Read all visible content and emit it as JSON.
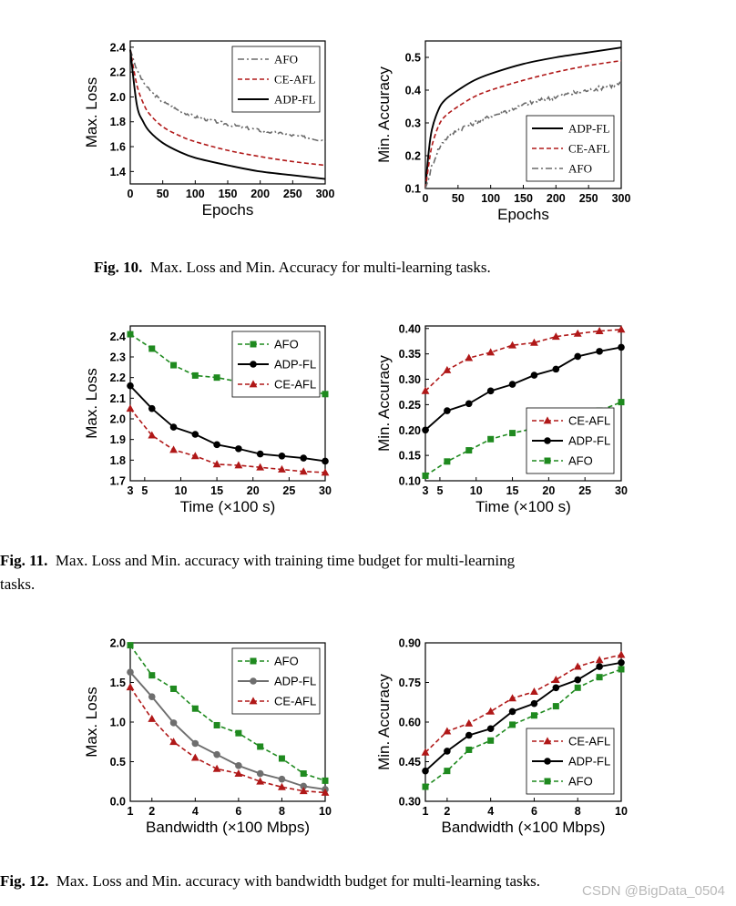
{
  "captions": {
    "fig10_label": "Fig. 10.",
    "fig10_text": "Max. Loss and Min. Accuracy for multi-learning tasks.",
    "fig11_label": "Fig. 11.",
    "fig11_text_line1": "Max. Loss and Min. accuracy with training time budget for multi-learning",
    "fig11_text_line2": "tasks.",
    "fig12_label": "Fig. 12.",
    "fig12_text": "Max. Loss and Min. accuracy with bandwidth budget for multi-learning tasks."
  },
  "watermark": "CSDN @BigData_0504",
  "colors": {
    "AFO_fig10": "#6a6a6a",
    "CE-AFL": "#b01818",
    "ADP-FL": "#000000",
    "AFO_green": "#1f8a1f",
    "ADP-FL_fig12": "#6e6e6e"
  },
  "chart_data": [
    {
      "id": "fig10a",
      "type": "line",
      "xlabel": "Epochs",
      "ylabel": "Max. Loss",
      "xlim": [
        0,
        300
      ],
      "ylim": [
        1.3,
        2.45
      ],
      "xticks": [
        0,
        50,
        100,
        150,
        200,
        250,
        300
      ],
      "yticks": [
        1.4,
        1.6,
        1.8,
        2.0,
        2.2,
        2.4
      ],
      "ytick_labels": [
        "1.4",
        "1.6",
        "1.8",
        "2.0",
        "2.2",
        "2.4"
      ],
      "legend": "top-right",
      "series": [
        {
          "name": "AFO",
          "style": "dashdot",
          "color": "#6a6a6a",
          "marker": "none",
          "noise": 0.012,
          "x": [
            0,
            10,
            20,
            30,
            50,
            75,
            100,
            150,
            200,
            250,
            300
          ],
          "y": [
            2.38,
            2.22,
            2.12,
            2.05,
            1.96,
            1.89,
            1.84,
            1.78,
            1.73,
            1.69,
            1.65
          ]
        },
        {
          "name": "CE-AFL",
          "style": "dashed",
          "color": "#b01818",
          "marker": "none",
          "noise": 0,
          "x": [
            0,
            10,
            20,
            30,
            50,
            75,
            100,
            150,
            200,
            250,
            300
          ],
          "y": [
            2.38,
            2.1,
            1.95,
            1.86,
            1.76,
            1.69,
            1.64,
            1.57,
            1.52,
            1.48,
            1.45
          ]
        },
        {
          "name": "ADP-FL",
          "style": "solid",
          "color": "#000000",
          "marker": "none",
          "noise": 0,
          "x": [
            0,
            10,
            20,
            30,
            50,
            75,
            100,
            150,
            200,
            250,
            300
          ],
          "y": [
            2.38,
            1.94,
            1.8,
            1.72,
            1.63,
            1.56,
            1.51,
            1.45,
            1.4,
            1.37,
            1.34
          ]
        }
      ]
    },
    {
      "id": "fig10b",
      "type": "line",
      "xlabel": "Epochs",
      "ylabel": "Min. Accuracy",
      "xlim": [
        0,
        300
      ],
      "ylim": [
        0.1,
        0.55
      ],
      "xticks": [
        0,
        50,
        100,
        150,
        200,
        250,
        300
      ],
      "yticks": [
        0.1,
        0.2,
        0.3,
        0.4,
        0.5
      ],
      "ytick_labels": [
        "0.1",
        "0.2",
        "0.3",
        "0.4",
        "0.5"
      ],
      "legend": "bottom-right",
      "series": [
        {
          "name": "ADP-FL",
          "style": "solid",
          "color": "#000000",
          "marker": "none",
          "noise": 0,
          "x": [
            0,
            5,
            10,
            20,
            30,
            50,
            75,
            100,
            150,
            200,
            250,
            300
          ],
          "y": [
            0.1,
            0.21,
            0.28,
            0.34,
            0.37,
            0.4,
            0.43,
            0.45,
            0.48,
            0.5,
            0.515,
            0.53
          ]
        },
        {
          "name": "CE-AFL",
          "style": "dashed",
          "color": "#b01818",
          "marker": "none",
          "noise": 0,
          "x": [
            0,
            5,
            10,
            20,
            30,
            50,
            75,
            100,
            150,
            200,
            250,
            300
          ],
          "y": [
            0.1,
            0.17,
            0.23,
            0.29,
            0.32,
            0.35,
            0.38,
            0.4,
            0.43,
            0.455,
            0.475,
            0.49
          ]
        },
        {
          "name": "AFO",
          "style": "dashdot",
          "color": "#6a6a6a",
          "marker": "none",
          "noise": 0.007,
          "x": [
            0,
            5,
            10,
            20,
            30,
            50,
            75,
            100,
            150,
            200,
            250,
            300
          ],
          "y": [
            0.1,
            0.13,
            0.17,
            0.22,
            0.25,
            0.28,
            0.3,
            0.32,
            0.355,
            0.38,
            0.4,
            0.42
          ]
        }
      ]
    },
    {
      "id": "fig11a",
      "type": "line",
      "xlabel": "Time (×100 s)",
      "ylabel": "Max. Loss",
      "xlim": [
        3,
        30
      ],
      "ylim": [
        1.7,
        2.45
      ],
      "xticks": [
        3,
        5,
        10,
        15,
        20,
        25,
        30
      ],
      "yticks": [
        1.7,
        1.8,
        1.9,
        2.0,
        2.1,
        2.2,
        2.3,
        2.4
      ],
      "ytick_labels": [
        "1.7",
        "1.8",
        "1.9",
        "2.0",
        "2.1",
        "2.2",
        "2.3",
        "2.4"
      ],
      "legend": "top-right",
      "series": [
        {
          "name": "AFO",
          "style": "dashed",
          "color": "#1f8a1f",
          "marker": "square",
          "noise": 0,
          "x": [
            3,
            6,
            9,
            12,
            15,
            18,
            21,
            24,
            27,
            30
          ],
          "y": [
            2.41,
            2.34,
            2.26,
            2.21,
            2.2,
            2.18,
            2.155,
            2.145,
            2.14,
            2.12
          ]
        },
        {
          "name": "ADP-FL",
          "style": "solid",
          "color": "#000000",
          "marker": "circle",
          "noise": 0,
          "x": [
            3,
            6,
            9,
            12,
            15,
            18,
            21,
            24,
            27,
            30
          ],
          "y": [
            2.16,
            2.05,
            1.96,
            1.925,
            1.875,
            1.855,
            1.83,
            1.82,
            1.81,
            1.795
          ]
        },
        {
          "name": "CE-AFL",
          "style": "dashed",
          "color": "#b01818",
          "marker": "triangle",
          "noise": 0,
          "x": [
            3,
            6,
            9,
            12,
            15,
            18,
            21,
            24,
            27,
            30
          ],
          "y": [
            2.05,
            1.92,
            1.85,
            1.82,
            1.78,
            1.775,
            1.765,
            1.755,
            1.745,
            1.74
          ]
        }
      ]
    },
    {
      "id": "fig11b",
      "type": "line",
      "xlabel": "Time (×100 s)",
      "ylabel": "Min. Accuracy",
      "xlim": [
        3,
        30
      ],
      "ylim": [
        0.1,
        0.405
      ],
      "xticks": [
        3,
        5,
        10,
        15,
        20,
        25,
        30
      ],
      "yticks": [
        0.1,
        0.15,
        0.2,
        0.25,
        0.3,
        0.35,
        0.4
      ],
      "ytick_labels": [
        "0.10",
        "0.15",
        "0.20",
        "0.25",
        "0.30",
        "0.35",
        "0.40"
      ],
      "legend": "bottom-right",
      "series": [
        {
          "name": "CE-AFL",
          "style": "dashed",
          "color": "#b01818",
          "marker": "triangle",
          "noise": 0,
          "x": [
            3,
            6,
            9,
            12,
            15,
            18,
            21,
            24,
            27,
            30
          ],
          "y": [
            0.277,
            0.318,
            0.342,
            0.353,
            0.367,
            0.372,
            0.384,
            0.39,
            0.395,
            0.398
          ]
        },
        {
          "name": "ADP-FL",
          "style": "solid",
          "color": "#000000",
          "marker": "circle",
          "noise": 0,
          "x": [
            3,
            6,
            9,
            12,
            15,
            18,
            21,
            24,
            27,
            30
          ],
          "y": [
            0.2,
            0.238,
            0.252,
            0.277,
            0.29,
            0.308,
            0.32,
            0.345,
            0.355,
            0.363
          ]
        },
        {
          "name": "AFO",
          "style": "dashed",
          "color": "#1f8a1f",
          "marker": "square",
          "noise": 0,
          "x": [
            3,
            6,
            9,
            12,
            15,
            18,
            21,
            24,
            27,
            30
          ],
          "y": [
            0.11,
            0.138,
            0.16,
            0.182,
            0.194,
            0.203,
            0.215,
            0.225,
            0.238,
            0.255
          ]
        }
      ]
    },
    {
      "id": "fig12a",
      "type": "line",
      "xlabel": "Bandwidth (×100 Mbps)",
      "ylabel": "Max. Loss",
      "xlim": [
        1,
        10
      ],
      "ylim": [
        0,
        2.0
      ],
      "xticks": [
        1,
        2,
        4,
        6,
        8,
        10
      ],
      "yticks": [
        0,
        0.5,
        1.0,
        1.5,
        2.0
      ],
      "ytick_labels": [
        "0.0",
        "0.5",
        "1.0",
        "1.5",
        "2.0"
      ],
      "legend": "top-right",
      "series": [
        {
          "name": "AFO",
          "style": "dashed",
          "color": "#1f8a1f",
          "marker": "square",
          "noise": 0,
          "x": [
            1,
            2,
            3,
            4,
            5,
            6,
            7,
            8,
            9,
            10
          ],
          "y": [
            1.97,
            1.59,
            1.42,
            1.17,
            0.96,
            0.86,
            0.69,
            0.54,
            0.35,
            0.26
          ]
        },
        {
          "name": "ADP-FL",
          "style": "solid",
          "color": "#6e6e6e",
          "marker": "circle",
          "noise": 0,
          "x": [
            1,
            2,
            3,
            4,
            5,
            6,
            7,
            8,
            9,
            10
          ],
          "y": [
            1.63,
            1.32,
            0.99,
            0.73,
            0.59,
            0.45,
            0.35,
            0.28,
            0.19,
            0.15
          ]
        },
        {
          "name": "CE-AFL",
          "style": "dashed",
          "color": "#b01818",
          "marker": "triangle",
          "noise": 0,
          "x": [
            1,
            2,
            3,
            4,
            5,
            6,
            7,
            8,
            9,
            10
          ],
          "y": [
            1.44,
            1.04,
            0.75,
            0.55,
            0.41,
            0.35,
            0.25,
            0.18,
            0.13,
            0.11
          ]
        }
      ]
    },
    {
      "id": "fig12b",
      "type": "line",
      "xlabel": "Bandwidth (×100 Mbps)",
      "ylabel": "Min. Accuracy",
      "xlim": [
        1,
        10
      ],
      "ylim": [
        0.3,
        0.9
      ],
      "xticks": [
        1,
        2,
        4,
        6,
        8,
        10
      ],
      "yticks": [
        0.3,
        0.45,
        0.6,
        0.75,
        0.9
      ],
      "ytick_labels": [
        "0.30",
        "0.45",
        "0.60",
        "0.75",
        "0.90"
      ],
      "legend": "bottom-right",
      "series": [
        {
          "name": "CE-AFL",
          "style": "dashed",
          "color": "#b01818",
          "marker": "triangle",
          "noise": 0,
          "x": [
            1,
            2,
            3,
            4,
            5,
            6,
            7,
            8,
            9,
            10
          ],
          "y": [
            0.485,
            0.565,
            0.595,
            0.64,
            0.69,
            0.715,
            0.76,
            0.81,
            0.835,
            0.855
          ]
        },
        {
          "name": "ADP-FL",
          "style": "solid",
          "color": "#000000",
          "marker": "circle",
          "noise": 0,
          "x": [
            1,
            2,
            3,
            4,
            5,
            6,
            7,
            8,
            9,
            10
          ],
          "y": [
            0.415,
            0.49,
            0.55,
            0.575,
            0.64,
            0.67,
            0.73,
            0.76,
            0.81,
            0.825
          ]
        },
        {
          "name": "AFO",
          "style": "dashed",
          "color": "#1f8a1f",
          "marker": "square",
          "noise": 0,
          "x": [
            1,
            2,
            3,
            4,
            5,
            6,
            7,
            8,
            9,
            10
          ],
          "y": [
            0.355,
            0.415,
            0.495,
            0.53,
            0.59,
            0.625,
            0.66,
            0.73,
            0.77,
            0.8
          ]
        }
      ]
    }
  ]
}
